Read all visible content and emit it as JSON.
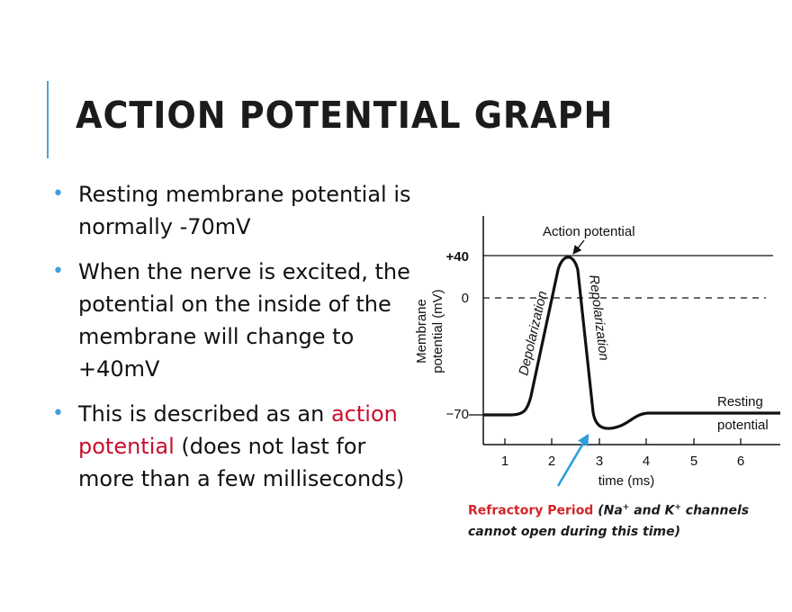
{
  "slide": {
    "title": "ACTION POTENTIAL GRAPH",
    "accent_color": "#4ea3d8",
    "bullet_color": "#3aa0dd",
    "highlight_color": "#c8102e"
  },
  "bullets": [
    {
      "text": "Resting membrane potential is normally -70mV"
    },
    {
      "text": "When the nerve is excited, the potential on the inside of the membrane will change to +40mV"
    },
    {
      "text_before": "This is described as an ",
      "highlight": "action potential",
      "text_after": " (does not last for more than a few milliseconds)"
    }
  ],
  "diagram": {
    "ylabel_line1": "Membrane",
    "ylabel_line2": "potential (mV)",
    "y_ticks": [
      "+40",
      "0",
      "−70"
    ],
    "x_ticks": [
      "1",
      "2",
      "3",
      "4",
      "5",
      "6"
    ],
    "xlabel": "time (ms)",
    "peak_label": "Action potential",
    "rise_label": "Depolarization",
    "fall_label": "Repolarization",
    "resting_label_1": "Resting",
    "resting_label_2": "potential"
  },
  "caption": {
    "red": "Refractory Period",
    "part1": " (Na",
    "sup1": "+",
    "part2": " and K",
    "sup2": "+",
    "part3": " channels cannot open during this time)"
  }
}
